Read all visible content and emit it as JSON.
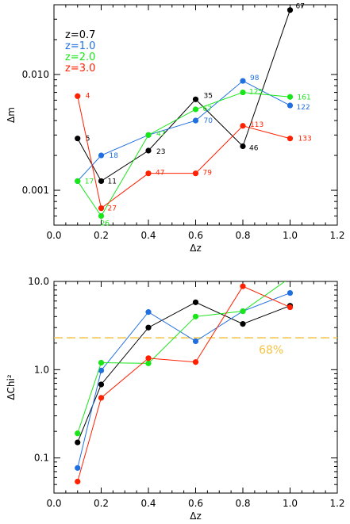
{
  "chart_data": [
    {
      "type": "line",
      "title": "",
      "xlabel": "Δz",
      "ylabel": "Δm",
      "xlim": [
        0.0,
        1.2
      ],
      "ylim_log10": [
        -3.301,
        -1.398
      ],
      "yscale": "log",
      "xticks": [
        "0.0",
        "0.2",
        "0.4",
        "0.6",
        "0.8",
        "1.0",
        "1.2"
      ],
      "yticks": [
        {
          "value": 0.001,
          "label": "0.001"
        },
        {
          "value": 0.01,
          "label": "0.010"
        }
      ],
      "grid": false,
      "legend": {
        "placement": "top-left"
      },
      "series": [
        {
          "name": "z=0.7",
          "color": "#000000",
          "x": [
            0.1,
            0.2,
            0.4,
            0.6,
            0.8,
            1.0
          ],
          "y": [
            0.0028,
            0.0012,
            0.0022,
            0.0061,
            0.0024,
            0.036
          ],
          "labels": [
            "5",
            "11",
            "23",
            "35",
            "46",
            "67"
          ]
        },
        {
          "name": "z=1.0",
          "color": "#1f6fe0",
          "x": [
            0.1,
            0.2,
            0.4,
            0.6,
            0.8,
            1.0
          ],
          "y": [
            0.0012,
            0.002,
            0.003,
            0.004,
            0.0088,
            0.0054
          ],
          "labels": [
            "",
            "18",
            "",
            "70",
            "98",
            "122"
          ]
        },
        {
          "name": "z=2.0",
          "color": "#19e619",
          "x": [
            0.1,
            0.2,
            0.4,
            0.6,
            0.8,
            1.0
          ],
          "y": [
            0.0012,
            0.0006,
            0.003,
            0.005,
            0.007,
            0.0064
          ],
          "labels": [
            "17",
            "26",
            "47",
            "67",
            "125",
            "161"
          ]
        },
        {
          "name": "z=3.0",
          "color": "#ff2000",
          "x": [
            0.1,
            0.2,
            0.4,
            0.6,
            0.8,
            1.0
          ],
          "y": [
            0.0065,
            0.0007,
            0.0014,
            0.0014,
            0.0036,
            0.0028
          ],
          "labels": [
            "4",
            "27",
            "47",
            "79",
            "113",
            "133"
          ]
        }
      ]
    },
    {
      "type": "line",
      "title": "",
      "xlabel": "Δz",
      "ylabel": "ΔChi²",
      "xlim": [
        0.0,
        1.2
      ],
      "ylim_log10": [
        -1.398,
        1.0
      ],
      "yscale": "log",
      "xticks": [
        "0.0",
        "0.2",
        "0.4",
        "0.6",
        "0.8",
        "1.0",
        "1.2"
      ],
      "yticks": [
        {
          "value": 0.1,
          "label": "0.1"
        },
        {
          "value": 1.0,
          "label": "1.0"
        },
        {
          "value": 10.0,
          "label": "10.0"
        }
      ],
      "grid": false,
      "reference_line": {
        "y": 2.3,
        "label": "68%",
        "color": "#f5c342"
      },
      "series": [
        {
          "name": "z=0.7",
          "color": "#000000",
          "x": [
            0.1,
            0.2,
            0.4,
            0.6,
            0.8,
            1.0
          ],
          "y": [
            0.15,
            0.68,
            3.0,
            5.8,
            3.3,
            5.3
          ]
        },
        {
          "name": "z=1.0",
          "color": "#1f6fe0",
          "x": [
            0.1,
            0.2,
            0.4,
            0.6,
            0.8,
            1.0
          ],
          "y": [
            0.077,
            0.98,
            4.5,
            2.1,
            4.6,
            7.4
          ]
        },
        {
          "name": "z=2.0",
          "color": "#19e619",
          "x": [
            0.1,
            0.2,
            0.4,
            0.6,
            0.8,
            1.0
          ],
          "y": [
            0.19,
            1.2,
            1.18,
            4.0,
            4.6,
            11.0
          ]
        },
        {
          "name": "z=3.0",
          "color": "#ff2000",
          "x": [
            0.1,
            0.2,
            0.4,
            0.6,
            0.8,
            1.0
          ],
          "y": [
            0.054,
            0.48,
            1.35,
            1.22,
            8.8,
            5.1
          ]
        }
      ]
    }
  ]
}
